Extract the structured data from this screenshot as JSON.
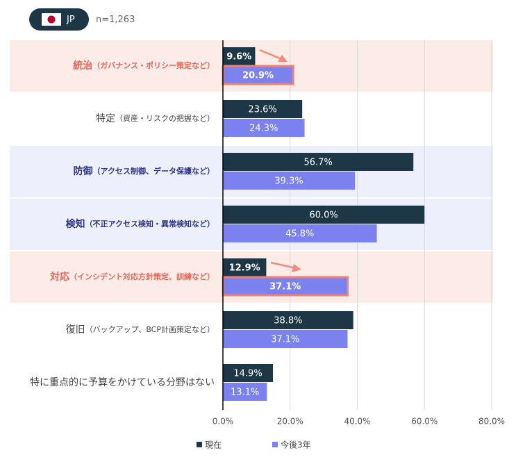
{
  "region": "JP",
  "sample": "n=1,263",
  "chart_data": {
    "type": "bar",
    "orientation": "horizontal",
    "categories": [
      "統治",
      "特定",
      "防御",
      "検知",
      "対応",
      "復旧",
      "特に重点的に予算をかけている分野はない"
    ],
    "category_details": [
      "（ガバナンス・ポリシー策定など）",
      "（資産・リスクの把握など）",
      "（アクセス制御、データ保護など）",
      "（不正アクセス検知・異常検知など）",
      "（インシデント対応方針策定、訓練など）",
      "（バックアップ、BCP計画策定など）",
      null
    ],
    "row_styles": [
      "red",
      null,
      "blue",
      "blue",
      "red",
      null,
      null
    ],
    "series": [
      {
        "name": "現在",
        "color": "#1d3747",
        "values": [
          9.6,
          23.6,
          56.7,
          60.0,
          12.9,
          38.8,
          14.9
        ],
        "value_labels": [
          "9.6%",
          "23.6%",
          "56.7%",
          "60.0%",
          "12.9%",
          "38.8%",
          "14.9%"
        ]
      },
      {
        "name": "今後3年",
        "color": "#7b82f0",
        "values": [
          20.9,
          24.3,
          39.3,
          45.8,
          37.1,
          37.1,
          13.1
        ],
        "value_labels": [
          "20.9%",
          "24.3%",
          "39.3%",
          "45.8%",
          "37.1%",
          "37.1%",
          "13.1%"
        ]
      }
    ],
    "highlighted_rows": [
      0,
      4
    ],
    "xlim": [
      0,
      80
    ],
    "xticks": [
      {
        "value": 0,
        "label": "0.0%"
      },
      {
        "value": 20,
        "label": "20.0%"
      },
      {
        "value": 40,
        "label": "40.0%"
      },
      {
        "value": 60,
        "label": "60.0%"
      },
      {
        "value": 80,
        "label": "80.0%"
      }
    ],
    "grid": true,
    "legend": "bottom"
  }
}
